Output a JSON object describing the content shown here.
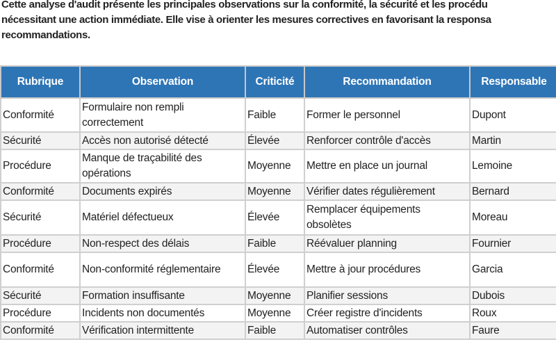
{
  "intro": {
    "lines": [
      "Cette analyse d'audit présente les principales observations sur la conformité, la sécurité et les procédu",
      "nécessitant une action immédiate. Elle vise à orienter les mesures correctives en favorisant la responsa",
      "recommandations."
    ]
  },
  "table": {
    "header_color": "#2e75b6",
    "columns": [
      "Rubrique",
      "Observation",
      "Criticité",
      "Recommandation",
      "Responsable"
    ],
    "rows": [
      [
        "Conformité",
        "Formulaire non rempli correctement",
        "Faible",
        "Former le personnel",
        "Dupont"
      ],
      [
        "Sécurité",
        "Accès non autorisé détecté",
        "Élevée",
        "Renforcer contrôle d'accès",
        "Martin"
      ],
      [
        "Procédure",
        "Manque de traçabilité des opérations",
        "Moyenne",
        "Mettre en place un journal",
        "Lemoine"
      ],
      [
        "Conformité",
        "Documents expirés",
        "Moyenne",
        "Vérifier dates régulièrement",
        "Bernard"
      ],
      [
        "Sécurité",
        "Matériel défectueux",
        "Élevée",
        "Remplacer équipements obsolètes",
        "Moreau"
      ],
      [
        "Procédure",
        "Non-respect des délais",
        "Faible",
        "Réévaluer planning",
        "Fournier"
      ],
      [
        "Conformité",
        "Non-conformité réglementaire",
        "Élevée",
        "Mettre à jour procédures",
        "Garcia"
      ],
      [
        "Sécurité",
        "Formation insuffisante",
        "Moyenne",
        "Planifier sessions",
        "Dubois"
      ],
      [
        "Procédure",
        "Incidents non documentés",
        "Moyenne",
        "Créer registre d'incidents",
        "Roux"
      ],
      [
        "Conformité",
        "Vérification intermittente",
        "Faible",
        "Automatiser contrôles",
        "Faure"
      ]
    ]
  }
}
